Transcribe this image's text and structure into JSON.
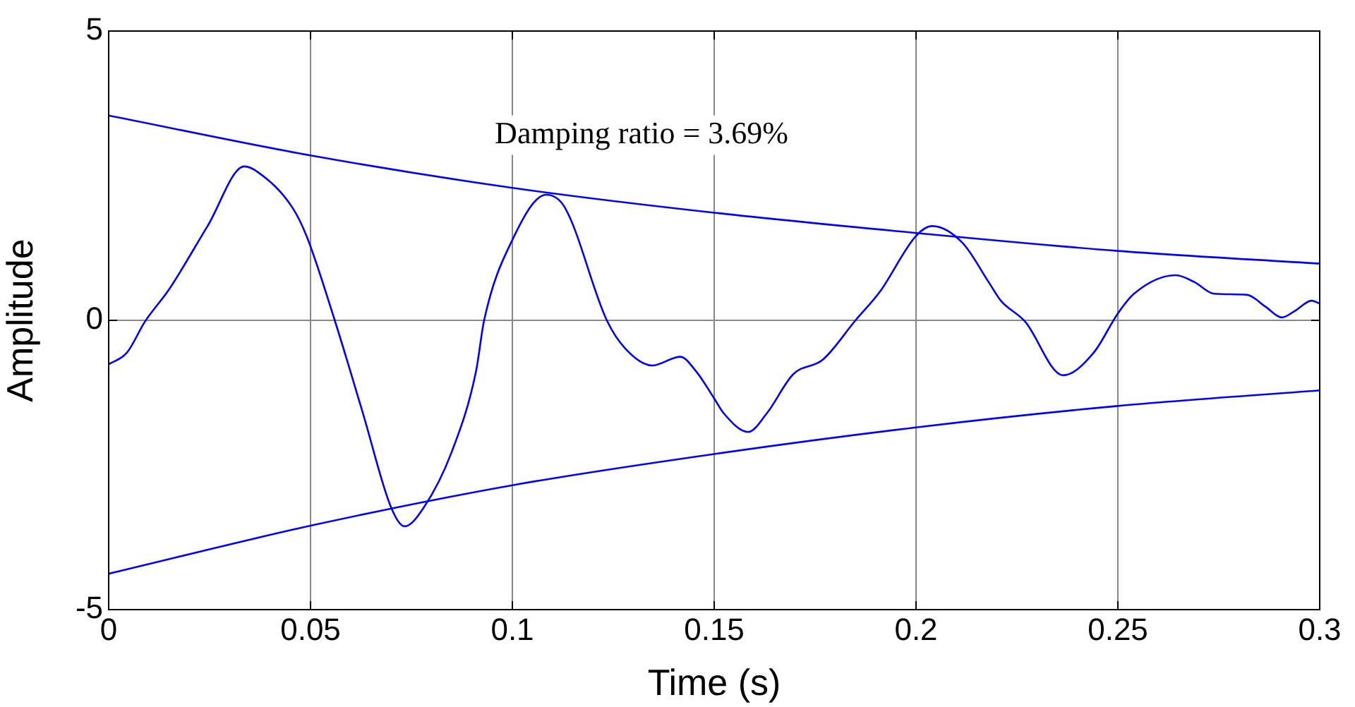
{
  "chart_data": {
    "type": "line",
    "xlabel": "Time (s)",
    "ylabel": "Amplitude",
    "annotations": [
      "Damping ratio = 3.69%"
    ],
    "xlim": [
      0,
      0.3
    ],
    "xticks": [
      0,
      0.05,
      0.1,
      0.15,
      0.2,
      0.25,
      0.3
    ],
    "ylim": [
      -5,
      5
    ],
    "yticks": [
      -5,
      0,
      5
    ],
    "grid": true,
    "legend": false,
    "marker": "none",
    "line_style": "solid",
    "series": [
      {
        "color": "#0000ff",
        "x": [
          0,
          0.0045,
          0.009,
          0.015,
          0.0245,
          0.0336,
          0.037,
          0.0455,
          0.049,
          0.056,
          0.063,
          0.07,
          0.0733,
          0.078,
          0.085,
          0.091,
          0.093,
          0.1,
          0.1084,
          0.113,
          0.1234,
          0.128,
          0.1346,
          0.1416,
          0.1455,
          0.15,
          0.1524,
          0.1584,
          0.163,
          0.1696,
          0.1769,
          0.185,
          0.191,
          0.2,
          0.204,
          0.2115,
          0.218,
          0.221,
          0.227,
          0.2364,
          0.244,
          0.25,
          0.254,
          0.2643,
          0.269,
          0.2738,
          0.282,
          0.2865,
          0.2906,
          0.294,
          0.298,
          0.3
        ],
        "values": [
          -0.76,
          -0.56,
          -0.02,
          0.54,
          1.63,
          2.66,
          2.56,
          1.95,
          1.46,
          0,
          -1.61,
          -3.24,
          -3.56,
          -3.24,
          -2.27,
          -0.88,
          0,
          1.39,
          2.17,
          1.95,
          0,
          -0.49,
          -0.78,
          -0.63,
          -0.88,
          -1.35,
          -1.61,
          -1.93,
          -1.61,
          -0.93,
          -0.68,
          0,
          0.49,
          1.46,
          1.63,
          1.34,
          0.66,
          0.34,
          -0.02,
          -0.95,
          -0.56,
          0.12,
          0.46,
          0.78,
          0.66,
          0.46,
          0.44,
          0.24,
          0.05,
          0.17,
          0.34,
          0.29
        ]
      },
      {
        "color": "#0000ff",
        "x": [
          0,
          0.05,
          0.1,
          0.15,
          0.2,
          0.25,
          0.3
        ],
        "values": [
          3.54,
          2.85,
          2.29,
          1.86,
          1.51,
          1.2,
          0.98
        ]
      },
      {
        "color": "#0000ff",
        "x": [
          0,
          0.05,
          0.1,
          0.15,
          0.2,
          0.25,
          0.3
        ],
        "values": [
          -4.38,
          -3.55,
          -2.85,
          -2.31,
          -1.85,
          -1.48,
          -1.21
        ]
      }
    ]
  }
}
